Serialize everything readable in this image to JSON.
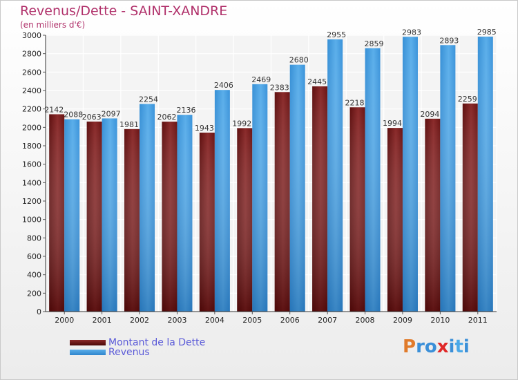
{
  "title": "Revenus/Dette - SAINT-XANDRE",
  "subtitle": "(en milliers d'€)",
  "logo": {
    "text": "Proxiti",
    "colors": [
      "#e07a2a",
      "#3a8fd8",
      "#3a8fd8",
      "#e02828",
      "#3a8fd8",
      "#49a8e8",
      "#3a8fd8"
    ]
  },
  "chart_data": {
    "type": "bar",
    "categories": [
      "2000",
      "2001",
      "2002",
      "2003",
      "2004",
      "2005",
      "2006",
      "2007",
      "2008",
      "2009",
      "2010",
      "2011"
    ],
    "series": [
      {
        "name": "Montant de la Dette",
        "color": "#7a1c1c",
        "values": [
          2142,
          2063,
          1981,
          2062,
          1943,
          1992,
          2383,
          2445,
          2218,
          1994,
          2094,
          2259
        ]
      },
      {
        "name": "Revenus",
        "color": "#3d9be0",
        "values": [
          2088,
          2097,
          2254,
          2136,
          2406,
          2469,
          2680,
          2955,
          2859,
          2983,
          2893,
          2985
        ]
      }
    ],
    "ylim": [
      0,
      3000
    ],
    "yticks": [
      0,
      200,
      400,
      600,
      800,
      1000,
      1200,
      1400,
      1600,
      1800,
      2000,
      2200,
      2400,
      2600,
      2800,
      3000
    ],
    "grid": true,
    "legend": "bottom-left"
  }
}
